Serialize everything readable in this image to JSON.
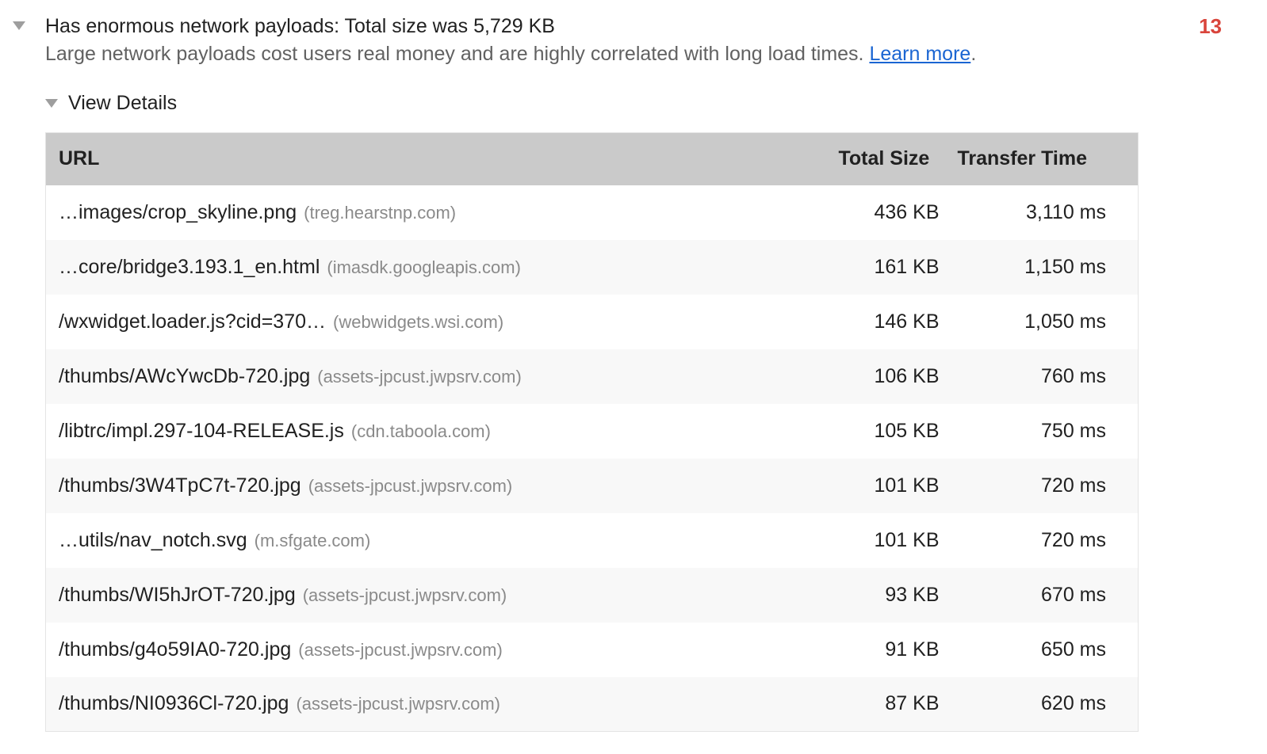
{
  "audit": {
    "title": "Has enormous network payloads: Total size was 5,729 KB",
    "description": "Large network payloads cost users real money and are highly correlated with long load times.",
    "learn_more_label": "Learn more",
    "learn_more_suffix": ".",
    "count_badge": "13",
    "view_details_label": "View Details"
  },
  "table": {
    "columns": [
      "URL",
      "Total Size",
      "Transfer Time"
    ],
    "rows": [
      {
        "url": "…images/crop_skyline.png",
        "domain": "(treg.hearstnp.com)",
        "size": "436 KB",
        "time": "3,110 ms"
      },
      {
        "url": "…core/bridge3.193.1_en.html",
        "domain": "(imasdk.googleapis.com)",
        "size": "161 KB",
        "time": "1,150 ms"
      },
      {
        "url": "/wxwidget.loader.js?cid=370…",
        "domain": "(webwidgets.wsi.com)",
        "size": "146 KB",
        "time": "1,050 ms"
      },
      {
        "url": "/thumbs/AWcYwcDb-720.jpg",
        "domain": "(assets-jpcust.jwpsrv.com)",
        "size": "106 KB",
        "time": "760 ms"
      },
      {
        "url": "/libtrc/impl.297-104-RELEASE.js",
        "domain": "(cdn.taboola.com)",
        "size": "105 KB",
        "time": "750 ms"
      },
      {
        "url": "/thumbs/3W4TpC7t-720.jpg",
        "domain": "(assets-jpcust.jwpsrv.com)",
        "size": "101 KB",
        "time": "720 ms"
      },
      {
        "url": "…utils/nav_notch.svg",
        "domain": "(m.sfgate.com)",
        "size": "101 KB",
        "time": "720 ms"
      },
      {
        "url": "/thumbs/WI5hJrOT-720.jpg",
        "domain": "(assets-jpcust.jwpsrv.com)",
        "size": "93 KB",
        "time": "670 ms"
      },
      {
        "url": "/thumbs/g4o59IA0-720.jpg",
        "domain": "(assets-jpcust.jwpsrv.com)",
        "size": "91 KB",
        "time": "650 ms"
      },
      {
        "url": "/thumbs/NI0936Cl-720.jpg",
        "domain": "(assets-jpcust.jwpsrv.com)",
        "size": "87 KB",
        "time": "620 ms"
      }
    ]
  },
  "colors": {
    "badge_red": "#d9453c",
    "link_blue": "#1a65d2",
    "header_grey": "#cacaca",
    "stripe_grey": "#f8f8f8",
    "arrow_grey": "#9e9e9e",
    "description_grey": "#616161",
    "domain_grey": "#8a8a8a"
  }
}
